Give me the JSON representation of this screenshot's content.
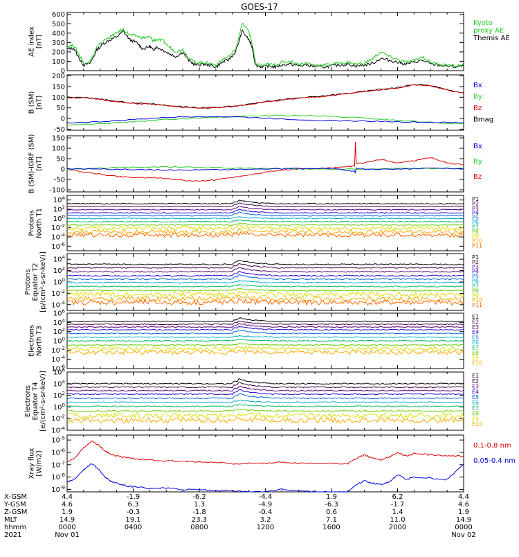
{
  "title": "GOES-17",
  "colors": {
    "black": "#000000",
    "green": "#22cc22",
    "red": "#dd0000",
    "blue": "#0000dd",
    "p_colors": [
      "#000000",
      "#400040",
      "#5a007a",
      "#2200cc",
      "#0066dd",
      "#00aacc",
      "#00bb66",
      "#66cc00",
      "#dddd00",
      "#ffaa00",
      "#ff6600",
      "#dd1100",
      "#aa0000"
    ]
  },
  "chart_data": [
    {
      "id": "ae",
      "type": "line",
      "ylabel": "AE index\n[nT]",
      "yticks": [
        "0",
        "100",
        "200",
        "300",
        "400",
        "500",
        "600"
      ],
      "ylim": [
        0,
        620
      ],
      "legend": [
        {
          "name": "Kyoto\nproxy AE",
          "color": "#22cc22"
        },
        {
          "name": "Themis AE",
          "color": "#000000"
        }
      ],
      "series": [
        {
          "name": "Themis AE",
          "color": "#000000",
          "x": [
            0,
            0.4,
            0.8,
            1,
            1.4,
            1.8,
            2.2,
            2.6,
            3,
            3.4,
            3.8,
            4.2,
            4.6,
            5,
            5.2,
            5.4,
            5.8,
            6.2,
            6.6,
            7,
            7.4,
            7.8,
            8.2,
            8.6,
            9,
            9.4,
            9.8,
            10.2,
            10.6,
            11,
            11.2,
            11.4,
            11.8,
            12.2,
            12.6,
            13,
            13.5,
            14,
            14.5,
            15,
            15.5,
            16,
            16.5,
            17,
            17.5,
            18,
            18.5,
            19,
            19.5,
            20,
            20.5,
            21,
            21.5,
            22,
            22.5,
            23,
            23.5,
            24
          ],
          "y": [
            230,
            240,
            110,
            60,
            80,
            220,
            290,
            330,
            360,
            420,
            330,
            300,
            230,
            260,
            220,
            250,
            220,
            180,
            150,
            200,
            100,
            60,
            70,
            60,
            40,
            90,
            120,
            200,
            420,
            330,
            250,
            60,
            40,
            50,
            40,
            60,
            70,
            50,
            60,
            45,
            40,
            50,
            60,
            70,
            50,
            60,
            80,
            130,
            110,
            90,
            70,
            90,
            110,
            70,
            60,
            50,
            40,
            50
          ]
        },
        {
          "name": "Kyoto proxy AE",
          "color": "#22cc22",
          "x": [
            0,
            0.4,
            0.8,
            1,
            1.4,
            1.8,
            2.2,
            2.6,
            3,
            3.4,
            3.8,
            4.2,
            4.6,
            5,
            5.2,
            5.4,
            5.8,
            6.2,
            6.6,
            7,
            7.4,
            7.8,
            8.2,
            8.6,
            9,
            9.4,
            9.8,
            10.2,
            10.6,
            11,
            11.2,
            11.4,
            11.8,
            12.2,
            12.6,
            13,
            13.5,
            14,
            14.5,
            15,
            15.5,
            16,
            16.5,
            17,
            17.5,
            18,
            18.5,
            19,
            19.5,
            20,
            20.5,
            21,
            21.5,
            22,
            22.5,
            23,
            23.5,
            24
          ],
          "y": [
            260,
            270,
            150,
            80,
            100,
            250,
            320,
            360,
            400,
            440,
            380,
            370,
            350,
            360,
            320,
            330,
            320,
            250,
            200,
            230,
            130,
            80,
            90,
            80,
            60,
            120,
            150,
            230,
            500,
            420,
            290,
            80,
            50,
            70,
            60,
            90,
            100,
            70,
            80,
            60,
            60,
            70,
            80,
            90,
            70,
            80,
            130,
            200,
            150,
            120,
            90,
            110,
            150,
            90,
            70,
            60,
            50,
            60
          ]
        }
      ]
    },
    {
      "id": "bsm",
      "type": "line",
      "ylabel": "B (SM)\n[nT]",
      "yticks": [
        "-50",
        "0",
        "50",
        "100",
        "150",
        "200"
      ],
      "ylim": [
        -55,
        205
      ],
      "legend": [
        {
          "name": "Bx",
          "color": "#0000dd"
        },
        {
          "name": "By",
          "color": "#22cc22"
        },
        {
          "name": "Bz",
          "color": "#dd0000"
        },
        {
          "name": "Bmag",
          "color": "#000000"
        }
      ],
      "series": [
        {
          "name": "Bmag",
          "color": "#000000",
          "x": [
            0,
            1,
            2,
            3,
            4,
            5,
            6,
            7,
            8,
            9,
            10,
            11,
            12,
            13,
            14,
            15,
            16,
            17,
            18,
            19,
            20,
            21,
            22,
            23,
            24
          ],
          "y": [
            100,
            98,
            92,
            80,
            72,
            70,
            62,
            55,
            50,
            52,
            58,
            68,
            80,
            88,
            96,
            102,
            110,
            118,
            128,
            138,
            145,
            160,
            155,
            135,
            120
          ]
        },
        {
          "name": "Bz",
          "color": "#dd0000",
          "x": [
            0,
            1,
            2,
            3,
            4,
            5,
            6,
            7,
            8,
            9,
            10,
            11,
            12,
            13,
            14,
            15,
            16,
            17,
            18,
            19,
            20,
            21,
            22,
            23,
            24
          ],
          "y": [
            98,
            96,
            90,
            78,
            70,
            68,
            60,
            53,
            48,
            50,
            56,
            66,
            78,
            86,
            94,
            100,
            108,
            116,
            126,
            136,
            143,
            158,
            153,
            133,
            118
          ]
        },
        {
          "name": "By",
          "color": "#22cc22",
          "x": [
            0,
            2,
            4,
            6,
            8,
            10,
            12,
            14,
            16,
            18,
            20,
            22,
            24
          ],
          "y": [
            -30,
            -25,
            -15,
            -5,
            2,
            8,
            14,
            14,
            10,
            2,
            -8,
            -18,
            -25
          ]
        },
        {
          "name": "Bx",
          "color": "#0000dd",
          "x": [
            0,
            2,
            4,
            6,
            8,
            10,
            12,
            14,
            16,
            18,
            20,
            22,
            24
          ],
          "y": [
            -20,
            -15,
            -5,
            5,
            10,
            8,
            2,
            -5,
            -10,
            -12,
            -15,
            -18,
            -20
          ]
        }
      ]
    },
    {
      "id": "bigrf",
      "type": "line",
      "ylabel": "B (SM)-IGRF (SM)\n[nT]",
      "yticks": [
        "-100",
        "-50",
        "0",
        "50",
        "100",
        "150"
      ],
      "ylim": [
        -110,
        160
      ],
      "legend": [
        {
          "name": "Bx",
          "color": "#0000dd"
        },
        {
          "name": "By",
          "color": "#22cc22"
        },
        {
          "name": "Bz",
          "color": "#dd0000"
        }
      ],
      "series": [
        {
          "name": "Bz",
          "color": "#dd0000",
          "x": [
            0,
            1,
            2,
            3,
            4,
            5,
            6,
            7,
            8,
            9,
            10,
            11,
            12,
            13,
            14,
            15,
            16,
            17,
            17.4,
            17.45,
            17.5,
            18,
            19,
            20,
            21,
            22,
            23,
            24
          ],
          "y": [
            0,
            -15,
            -25,
            -35,
            -40,
            -42,
            -45,
            -55,
            -58,
            -52,
            -40,
            -28,
            -15,
            -5,
            0,
            2,
            5,
            10,
            15,
            130,
            25,
            30,
            45,
            30,
            40,
            55,
            30,
            20
          ]
        },
        {
          "name": "By",
          "color": "#22cc22",
          "x": [
            0,
            2,
            4,
            6,
            8,
            10,
            12,
            14,
            16,
            18,
            20,
            22,
            24
          ],
          "y": [
            -2,
            5,
            8,
            10,
            8,
            5,
            2,
            0,
            -2,
            0,
            2,
            4,
            3
          ]
        },
        {
          "name": "Bx",
          "color": "#0000dd",
          "x": [
            0,
            2,
            4,
            6,
            8,
            10,
            12,
            14,
            16,
            17.4,
            17.45,
            17.5,
            18,
            20,
            22,
            24
          ],
          "y": [
            2,
            0,
            -2,
            -5,
            -4,
            -2,
            0,
            2,
            3,
            -10,
            -20,
            5,
            0,
            -2,
            5,
            0
          ]
        }
      ]
    },
    {
      "id": "pn",
      "type": "line",
      "log_scale": true,
      "ylabel": "Protons\nNorth T1",
      "yticks": [
        "10^-6",
        "10^-4",
        "10^-2",
        "10^0",
        "10^2",
        "10^4"
      ],
      "ylim_exp": [
        -7,
        5
      ],
      "legend": [
        "P1",
        "P2",
        "P3",
        "P4",
        "P5",
        "P6",
        "P7",
        "P8",
        "P9",
        "P10",
        "P11"
      ],
      "levels": [
        3.2,
        2.6,
        1.9,
        1.2,
        0.6,
        0.0,
        -0.7,
        -1.4,
        -2.1,
        -2.9,
        -3.6
      ]
    },
    {
      "id": "pe",
      "type": "line",
      "log_scale": true,
      "ylabel": "Protons\nEquator T2\n[p/(cm²-s-sr-keV)]",
      "yticks": [
        "10^-4",
        "10^-2",
        "10^0",
        "10^2",
        "10^4"
      ],
      "ylim_exp": [
        -5,
        5
      ],
      "legend": [
        "P1",
        "P2",
        "P3",
        "P4",
        "P5",
        "P6",
        "P7",
        "P8",
        "P9",
        "P10",
        "P11"
      ],
      "levels": [
        3.1,
        2.5,
        1.8,
        1.1,
        0.5,
        -0.1,
        -0.8,
        -1.5,
        -2.2,
        -3.0,
        -3.6
      ]
    },
    {
      "id": "en",
      "type": "line",
      "log_scale": true,
      "ylabel": "Electrons\nNorth T3",
      "yticks": [
        "10^-6",
        "10^-4",
        "10^-2",
        "10^0",
        "10^2",
        "10^4",
        "10^6"
      ],
      "ylim_exp": [
        -6,
        6
      ],
      "legend": [
        "E1",
        "E2",
        "E3",
        "E4",
        "E5",
        "E6",
        "E7",
        "E8",
        "E9",
        "E10"
      ],
      "levels": [
        4.2,
        3.6,
        3.0,
        2.4,
        1.6,
        0.8,
        0.0,
        -0.9,
        -1.7,
        -2.5
      ]
    },
    {
      "id": "ee",
      "type": "line",
      "log_scale": true,
      "ylabel": "Electrons\nEquator T4\n[e/(cm²-s-sr-keV)]",
      "yticks": [
        "10^-4",
        "10^-2",
        "10^0",
        "10^2",
        "10^4",
        "10^6"
      ],
      "ylim_exp": [
        -4,
        6
      ],
      "legend": [
        "E1",
        "E2",
        "E3",
        "E4",
        "E5",
        "E6",
        "E7",
        "E8",
        "E9",
        "E10"
      ],
      "levels": [
        4.0,
        3.4,
        2.8,
        2.2,
        1.5,
        0.8,
        0.1,
        -0.7,
        -1.5,
        -2.3
      ]
    },
    {
      "id": "xray",
      "type": "line",
      "log_scale": true,
      "ylabel": "Xray flux\n[W/m2]",
      "yticks": [
        "10^-9",
        "10^-8",
        "10^-7",
        "10^-6",
        "10^-5"
      ],
      "ylim_exp": [
        -9.2,
        -4.6
      ],
      "legend": [
        {
          "name": "0.1-0.8 nm",
          "color": "#dd0000"
        },
        {
          "name": "0.05-0.4 nm",
          "color": "#0000dd"
        }
      ],
      "series": [
        {
          "name": "0.1-0.8 nm",
          "color": "#dd0000",
          "x": [
            0,
            0.5,
            1,
            1.5,
            2,
            2.3,
            2.6,
            3,
            3.5,
            4,
            5,
            6,
            7,
            8,
            9,
            10,
            11,
            12,
            13,
            14,
            15,
            16,
            17,
            17.5,
            18,
            18.5,
            19,
            19.5,
            20,
            20.5,
            21,
            22,
            23,
            24
          ],
          "y": [
            -6.8,
            -6.4,
            -5.6,
            -5.1,
            -5.5,
            -5.9,
            -6.1,
            -6.3,
            -6.4,
            -6.5,
            -6.6,
            -6.7,
            -6.7,
            -6.8,
            -6.8,
            -6.9,
            -6.9,
            -6.9,
            -6.8,
            -6.9,
            -6.9,
            -6.9,
            -6.9,
            -6.5,
            -6.2,
            -6.5,
            -6.6,
            -6.4,
            -6.0,
            -6.3,
            -6.1,
            -6.2,
            -6.3,
            -6.3
          ]
        },
        {
          "name": "0.05-0.4 nm",
          "color": "#0000dd",
          "x": [
            0,
            0.5,
            1,
            1.5,
            2,
            2.3,
            2.6,
            3,
            3.5,
            4,
            5,
            6,
            7,
            8,
            9,
            10,
            11,
            12,
            13,
            14,
            15,
            16,
            17,
            17.5,
            18,
            18.5,
            19,
            19.5,
            20,
            20.5,
            21,
            22,
            23,
            24
          ],
          "y": [
            -8.4,
            -8.1,
            -7.4,
            -6.9,
            -7.5,
            -8.0,
            -8.3,
            -8.5,
            -8.7,
            -8.8,
            -8.9,
            -8.9,
            -9.0,
            -9.0,
            -9.1,
            -9.1,
            -9.2,
            -9.2,
            -9.0,
            -9.1,
            -9.2,
            -9.2,
            -9.2,
            -8.6,
            -8.3,
            -8.5,
            -8.6,
            -8.4,
            -7.8,
            -8.2,
            -8.0,
            -8.1,
            -8.2,
            -7.0
          ]
        }
      ]
    }
  ],
  "footer": {
    "row_labels": [
      "X-GSM",
      "Y-GSM",
      "Z-GSM",
      "MLT",
      "hhmm",
      "2021"
    ],
    "columns": [
      {
        "x": 0,
        "values": [
          "4.4",
          "4.6",
          "1.9",
          "14.9",
          "0000",
          "Nov 01"
        ]
      },
      {
        "x": 4,
        "values": [
          "-1.9",
          "6.3",
          "-0.3",
          "19.1",
          "0400",
          ""
        ]
      },
      {
        "x": 8,
        "values": [
          "-6.2",
          "1.3",
          "-1.8",
          "23.3",
          "0800",
          ""
        ]
      },
      {
        "x": 12,
        "values": [
          "-4.4",
          "-4.9",
          "-0.4",
          "3.2",
          "1200",
          ""
        ]
      },
      {
        "x": 16,
        "values": [
          "1.9",
          "-6.3",
          "0.6",
          "7.1",
          "1600",
          ""
        ]
      },
      {
        "x": 20,
        "values": [
          "6.2",
          "-1.7",
          "1.4",
          "11.0",
          "2000",
          ""
        ]
      },
      {
        "x": 24,
        "values": [
          "4.4",
          "4.6",
          "1.9",
          "14.9",
          "0000",
          "Nov 02"
        ]
      }
    ]
  }
}
